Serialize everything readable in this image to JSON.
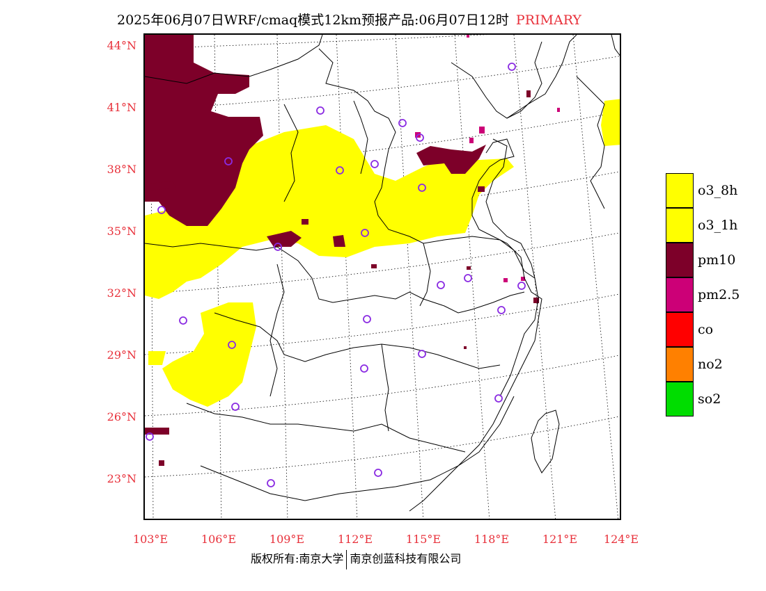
{
  "header": {
    "title": "2025年06月07日WRF/cmaq模式12km预报产品:06月07日12时",
    "tag": "PRIMARY"
  },
  "axes": {
    "latitude_labels": [
      "44°N",
      "41°N",
      "38°N",
      "35°N",
      "32°N",
      "29°N",
      "26°N",
      "23°N"
    ],
    "longitude_labels": [
      "103°E",
      "106°E",
      "109°E",
      "112°E",
      "115°E",
      "118°E",
      "121°E",
      "124°E"
    ]
  },
  "legend": {
    "items": [
      {
        "label": "o3_8h",
        "color": "#ffff00"
      },
      {
        "label": "o3_1h",
        "color": "#ffff00"
      },
      {
        "label": "pm10",
        "color": "#7d0029"
      },
      {
        "label": "pm2.5",
        "color": "#cc0077"
      },
      {
        "label": "co",
        "color": "#ff0000"
      },
      {
        "label": "no2",
        "color": "#ff8000"
      },
      {
        "label": "so2",
        "color": "#00dd00"
      }
    ]
  },
  "map": {
    "station_marker_color": "#8a2be2"
  },
  "footer": {
    "left": "版权所有:南京大学",
    "right": "南京创蓝科技有限公司"
  }
}
